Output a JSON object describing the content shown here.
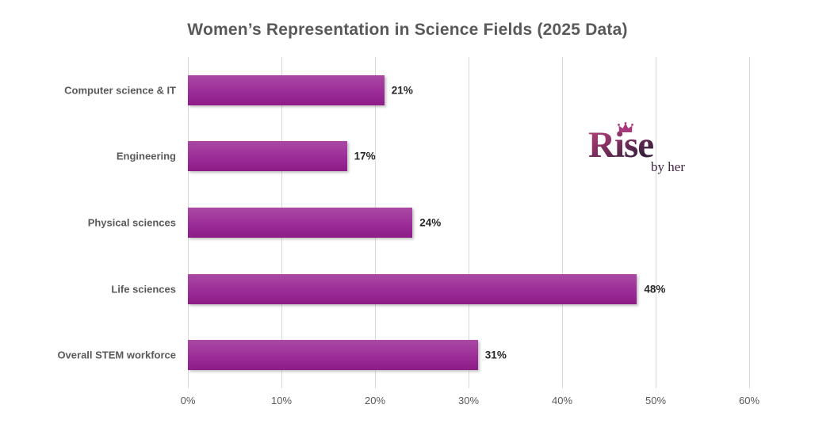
{
  "title": "Women’s Representation in Science Fields (2025 Data)",
  "chart_data": {
    "type": "bar",
    "orientation": "horizontal",
    "title": "Women’s Representation in Science Fields (2025 Data)",
    "categories": [
      "Computer science & IT",
      "Engineering",
      "Physical sciences",
      "Life sciences",
      "Overall STEM workforce"
    ],
    "values": [
      21,
      17,
      24,
      48,
      31
    ],
    "value_labels": [
      "21%",
      "17%",
      "24%",
      "48%",
      "31%"
    ],
    "xlabel": "",
    "ylabel": "",
    "xlim": [
      0,
      60
    ],
    "x_ticks": [
      "0%",
      "10%",
      "20%",
      "30%",
      "40%",
      "50%",
      "60%"
    ],
    "x_tick_values": [
      0,
      10,
      20,
      30,
      40,
      50,
      60
    ],
    "grid": "vertical-only",
    "legend": "none",
    "bar_color_top": "#aa4aa5",
    "bar_color_mid": "#9c2d98",
    "bar_color_bottom": "#8d1c87",
    "gridline_color": "#d9d9d9",
    "category_label_color": "#595959",
    "value_label_color": "#262626",
    "title_color": "#595959"
  },
  "logo": {
    "brand": "Rise",
    "tagline": "by her",
    "crown_icon": "crown-icon",
    "brand_color_dark": "#3a1f3d",
    "brand_color_pink": "#b2487e",
    "crown_color": "#a8397c"
  }
}
